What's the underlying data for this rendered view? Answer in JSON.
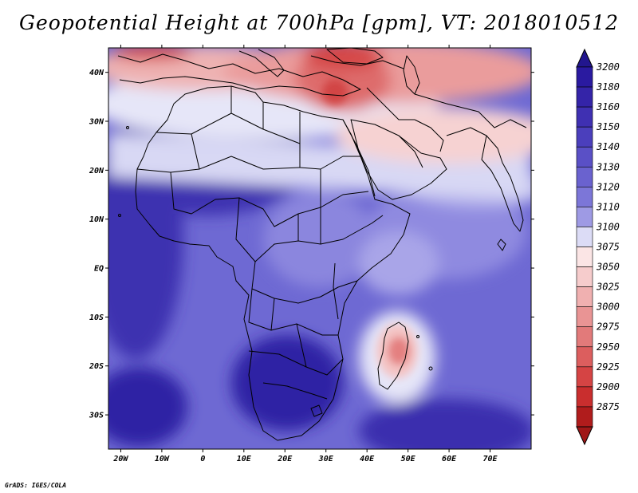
{
  "title": "Geopotential Height at 700hPa [gpm], VT: 2018010512",
  "credit": "GrADS: IGES/COLA",
  "map": {
    "lon_range": [
      -23,
      80
    ],
    "lat_range": [
      -37,
      45
    ],
    "lon_ticks": [
      {
        "value": -20,
        "label": "20W"
      },
      {
        "value": -10,
        "label": "10W"
      },
      {
        "value": 0,
        "label": "0"
      },
      {
        "value": 10,
        "label": "10E"
      },
      {
        "value": 20,
        "label": "20E"
      },
      {
        "value": 30,
        "label": "30E"
      },
      {
        "value": 40,
        "label": "40E"
      },
      {
        "value": 50,
        "label": "50E"
      },
      {
        "value": 60,
        "label": "60E"
      },
      {
        "value": 70,
        "label": "70E"
      }
    ],
    "lat_ticks": [
      {
        "value": 40,
        "label": "40N"
      },
      {
        "value": 30,
        "label": "30N"
      },
      {
        "value": 20,
        "label": "20N"
      },
      {
        "value": 10,
        "label": "10N"
      },
      {
        "value": 0,
        "label": "EQ"
      },
      {
        "value": -10,
        "label": "10S"
      },
      {
        "value": -20,
        "label": "20S"
      },
      {
        "value": -30,
        "label": "30S"
      }
    ]
  },
  "colorbar": {
    "levels": [
      {
        "label": "3200",
        "color": "#2a1aa0"
      },
      {
        "label": "3180",
        "color": "#3424a8"
      },
      {
        "label": "3160",
        "color": "#3f30b2"
      },
      {
        "label": "3150",
        "color": "#4b3fbc"
      },
      {
        "label": "3140",
        "color": "#5a50c6"
      },
      {
        "label": "3130",
        "color": "#6a62cf"
      },
      {
        "label": "3120",
        "color": "#7c76d8"
      },
      {
        "label": "3110",
        "color": "#9e9ae4"
      },
      {
        "label": "3100",
        "color": "#dcdcf6"
      },
      {
        "label": "3075",
        "color": "#fbe5e5"
      },
      {
        "label": "3050",
        "color": "#f6cccc"
      },
      {
        "label": "3025",
        "color": "#f0b0b0"
      },
      {
        "label": "3000",
        "color": "#e99494"
      },
      {
        "label": "2975",
        "color": "#e27a7a"
      },
      {
        "label": "2950",
        "color": "#dc5e5e"
      },
      {
        "label": "2925",
        "color": "#d54444"
      },
      {
        "label": "2900",
        "color": "#c92e2e"
      },
      {
        "label": "2875",
        "color": "#b01c1c"
      }
    ],
    "top_arrow_color": "#22168e",
    "bottom_arrow_color": "#a01818"
  }
}
